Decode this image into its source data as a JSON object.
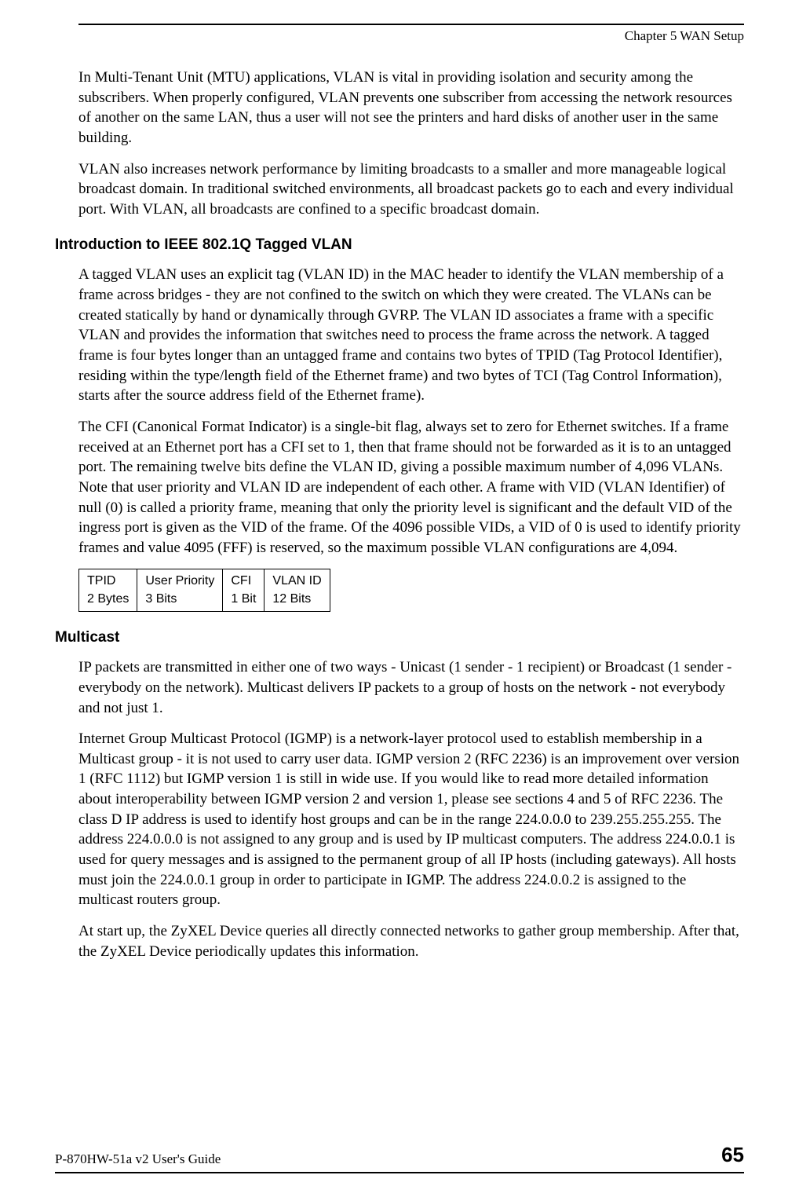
{
  "header": {
    "chapter": "Chapter 5 WAN Setup"
  },
  "paragraphs": {
    "p1": "In Multi-Tenant Unit (MTU) applications, VLAN is vital in providing isolation and security among the subscribers. When properly configured, VLAN prevents one subscriber from accessing the network resources of another on the same LAN, thus a user will not see the printers and hard disks of another user in the same building.",
    "p2": "VLAN also increases network performance by limiting broadcasts to a smaller and more manageable logical broadcast domain. In traditional switched environments, all broadcast packets go to each and every individual port. With VLAN, all broadcasts are confined to a specific broadcast domain.",
    "p3": "A tagged VLAN uses an explicit tag (VLAN ID) in the MAC header to identify the VLAN membership of a frame across bridges - they are not confined to the switch on which they were created. The VLANs can be created statically by hand or dynamically through GVRP. The VLAN ID associates a frame with a specific VLAN and provides the information that switches need to process the frame across the network. A tagged frame is four bytes longer than an untagged frame and contains two bytes of TPID (Tag Protocol Identifier), residing within the type/length field of the Ethernet frame) and two bytes of TCI (Tag Control Information), starts after the source address field of the Ethernet frame).",
    "p4": "The CFI (Canonical Format Indicator) is a single-bit flag, always set to zero for Ethernet switches. If a frame received at an Ethernet port has a CFI set to 1, then that frame should not be forwarded as it is to an untagged port. The remaining twelve bits define the VLAN ID, giving a possible maximum number of 4,096 VLANs. Note that user priority and VLAN ID are independent of each other. A frame with VID (VLAN Identifier) of null (0) is called a priority frame, meaning that only the priority level is significant and the default VID of the ingress port is given as the VID of the frame. Of the 4096 possible VIDs, a VID of 0 is used to identify priority frames and value 4095 (FFF) is reserved, so the maximum possible VLAN configurations are 4,094.",
    "p5": "IP packets are transmitted in either one of two ways - Unicast (1 sender - 1 recipient) or Broadcast (1 sender - everybody on the network). Multicast delivers IP packets to a group of hosts on the network - not everybody and not just 1.",
    "p6": "Internet Group Multicast Protocol (IGMP) is a network-layer protocol used to establish membership in a Multicast group - it is not used to carry user data. IGMP version 2 (RFC 2236) is an improvement over version 1 (RFC 1112) but IGMP version 1 is still in wide use. If you would like to read more detailed information about interoperability between IGMP version 2 and version 1, please see sections 4 and 5 of RFC 2236. The class D IP address is used to identify host groups and can be in the range 224.0.0.0 to 239.255.255.255. The address 224.0.0.0 is not assigned to any group and is used by IP multicast computers. The address 224.0.0.1 is used for query messages and is assigned to the permanent group of all IP hosts (including gateways). All hosts must join the 224.0.0.1 group in order to participate in IGMP. The address 224.0.0.2 is assigned to the multicast routers group.",
    "p7": "At start up, the ZyXEL Device queries all directly connected networks to gather group membership. After that, the ZyXEL Device periodically updates this information."
  },
  "headings": {
    "h1": "Introduction to IEEE 802.1Q Tagged VLAN",
    "h2": "Multicast"
  },
  "vlan_table": {
    "cells": [
      {
        "line1": "TPID",
        "line2": "2 Bytes"
      },
      {
        "line1": "User Priority",
        "line2": "3 Bits"
      },
      {
        "line1": "CFI",
        "line2": "1 Bit"
      },
      {
        "line1": "VLAN ID",
        "line2": "12 Bits"
      }
    ]
  },
  "footer": {
    "guide": "P-870HW-51a v2 User's Guide",
    "page": "65"
  }
}
